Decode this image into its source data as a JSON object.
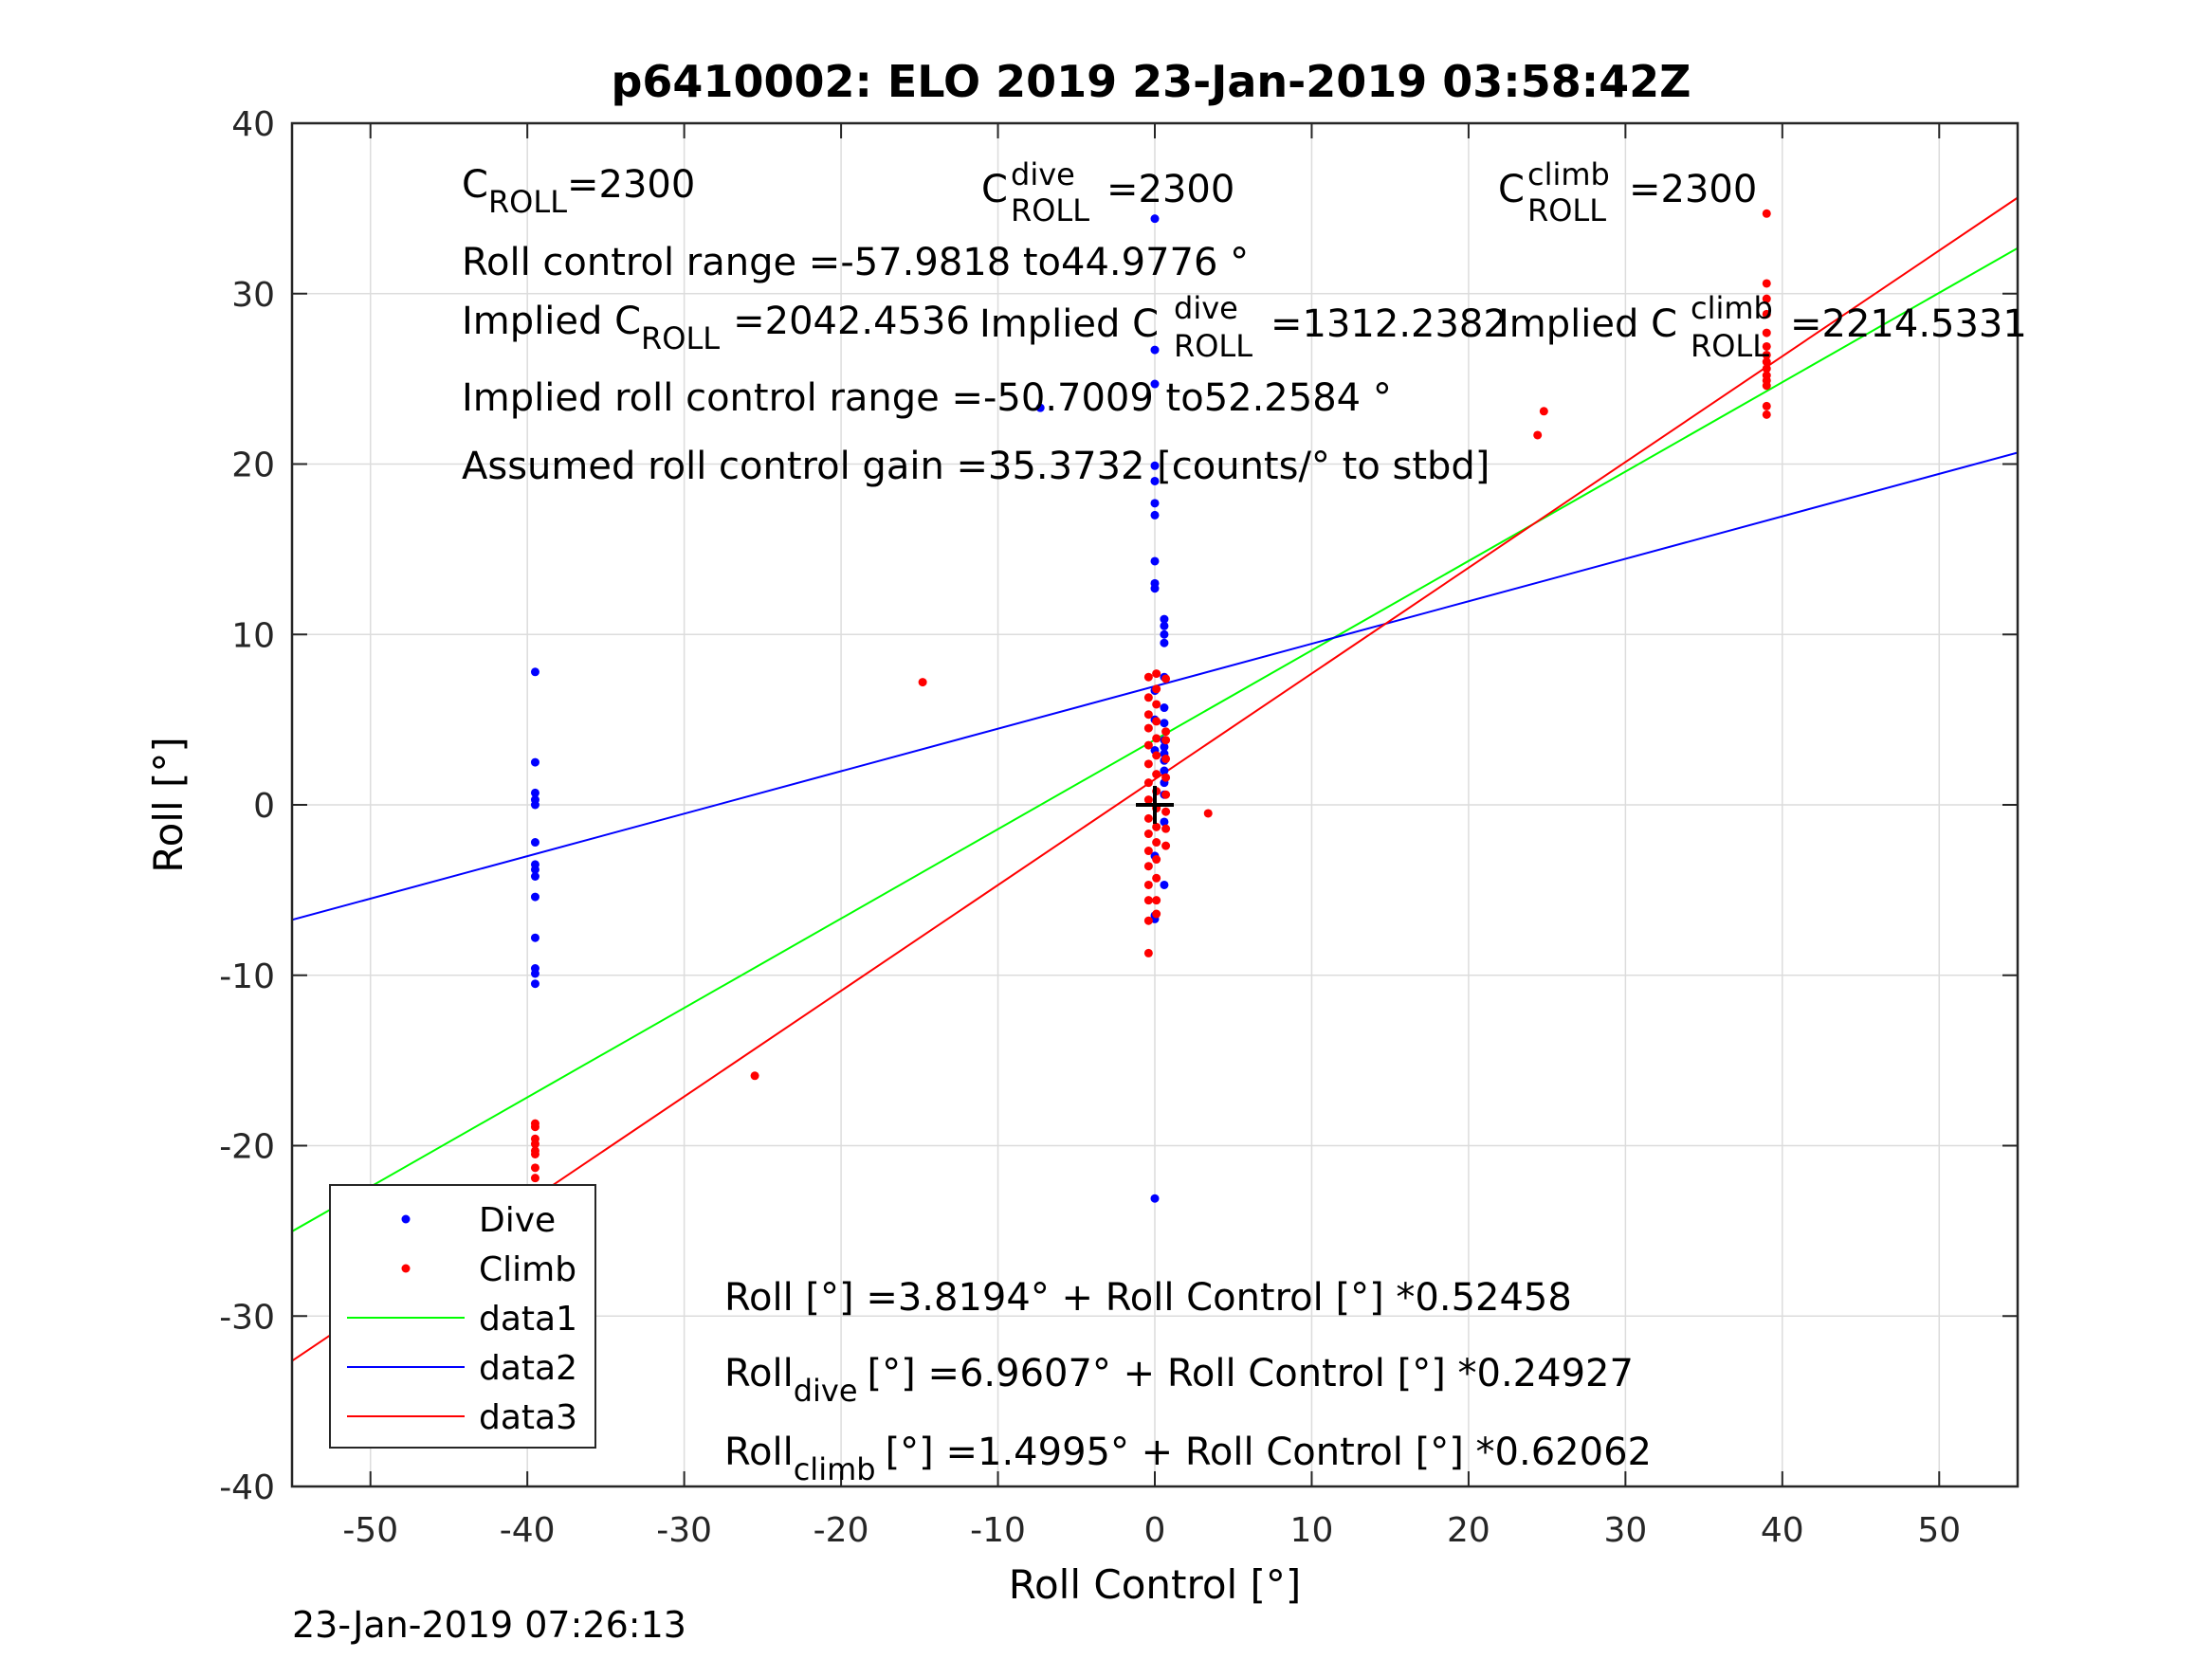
{
  "chart_data": {
    "type": "scatter",
    "title": "p6410002: ELO 2019 23-Jan-2019 03:58:42Z",
    "xlabel": "Roll Control [°]",
    "ylabel": "Roll [°]",
    "xlim": [
      -55,
      55
    ],
    "ylim": [
      -40,
      40
    ],
    "x_ticks": [
      -50,
      -40,
      -30,
      -20,
      -10,
      0,
      10,
      20,
      30,
      40,
      50
    ],
    "y_ticks": [
      -40,
      -30,
      -20,
      -10,
      0,
      10,
      20,
      30,
      40
    ],
    "x_tick_labels": [
      "-50",
      "-40",
      "-30",
      "-20",
      "-10",
      "0",
      "10",
      "20",
      "30",
      "40",
      "50"
    ],
    "y_tick_labels": [
      "-40",
      "-30",
      "-20",
      "-10",
      "0",
      "10",
      "20",
      "30",
      "40"
    ],
    "grid": true,
    "legend_position": "bottom-left",
    "timestamp": "23-Jan-2019 07:26:13",
    "colors": {
      "dive": "#0000ff",
      "climb": "#ff0000",
      "data1": "#00ff00",
      "data2": "#0000ff",
      "data3": "#ff0000",
      "origin": "#000000"
    },
    "origin_marker": {
      "x": 0,
      "y": 0
    },
    "scatter_series": [
      {
        "name": "Dive",
        "color": "#0000ff",
        "points": [
          [
            -39.5,
            7.8
          ],
          [
            -39.5,
            2.5
          ],
          [
            -39.5,
            0.7
          ],
          [
            -39.5,
            0.3
          ],
          [
            -39.5,
            0.0
          ],
          [
            -39.5,
            -2.2
          ],
          [
            -39.5,
            -3.5
          ],
          [
            -39.5,
            -3.8
          ],
          [
            -39.5,
            -4.2
          ],
          [
            -39.5,
            -5.4
          ],
          [
            -39.5,
            -7.8
          ],
          [
            -39.5,
            -9.6
          ],
          [
            -39.5,
            -9.9
          ],
          [
            -39.5,
            -10.5
          ],
          [
            0,
            34.4
          ],
          [
            0,
            26.7
          ],
          [
            0,
            24.7
          ],
          [
            0,
            19.9
          ],
          [
            0,
            19.0
          ],
          [
            0,
            17.7
          ],
          [
            0,
            17.0
          ],
          [
            0,
            14.3
          ],
          [
            0,
            13.0
          ],
          [
            0,
            12.7
          ],
          [
            0,
            6.7
          ],
          [
            0,
            5.0
          ],
          [
            0,
            3.2
          ],
          [
            0,
            -3.0
          ],
          [
            0,
            -6.5
          ],
          [
            0,
            -6.7
          ],
          [
            0,
            -23.1
          ],
          [
            0.6,
            10.9
          ],
          [
            0.6,
            10.5
          ],
          [
            0.6,
            10.0
          ],
          [
            0.6,
            9.5
          ],
          [
            0.6,
            7.5
          ],
          [
            0.6,
            5.7
          ],
          [
            0.6,
            4.8
          ],
          [
            0.6,
            3.8
          ],
          [
            0.6,
            3.4
          ],
          [
            0.6,
            3.0
          ],
          [
            0.6,
            2.6
          ],
          [
            0.6,
            2.0
          ],
          [
            0.6,
            1.3
          ],
          [
            0.6,
            0.6
          ],
          [
            0.6,
            -1.0
          ],
          [
            0.6,
            -4.7
          ],
          [
            -7.3,
            23.3
          ]
        ]
      },
      {
        "name": "Climb",
        "color": "#ff0000",
        "points": [
          [
            -39.5,
            -18.7
          ],
          [
            -39.5,
            -18.9
          ],
          [
            -39.5,
            -19.6
          ],
          [
            -39.5,
            -19.9
          ],
          [
            -39.5,
            -20.3
          ],
          [
            -39.5,
            -20.5
          ],
          [
            -39.5,
            -21.3
          ],
          [
            -39.5,
            -21.9
          ],
          [
            -39.5,
            -22.5
          ],
          [
            -25.5,
            -15.9
          ],
          [
            -14.8,
            7.2
          ],
          [
            3.4,
            -0.5
          ],
          [
            24.4,
            21.7
          ],
          [
            24.8,
            23.1
          ],
          [
            39,
            34.7
          ],
          [
            39,
            30.6
          ],
          [
            39,
            29.7
          ],
          [
            39,
            28.8
          ],
          [
            39,
            27.7
          ],
          [
            39,
            26.9
          ],
          [
            39,
            26.4
          ],
          [
            39,
            26.0
          ],
          [
            39,
            25.6
          ],
          [
            39,
            25.2
          ],
          [
            39,
            24.9
          ],
          [
            39,
            24.6
          ],
          [
            39,
            23.4
          ],
          [
            39,
            22.9
          ],
          [
            -0.4,
            7.5
          ],
          [
            -0.4,
            6.3
          ],
          [
            -0.4,
            5.3
          ],
          [
            -0.4,
            4.5
          ],
          [
            -0.4,
            3.5
          ],
          [
            -0.4,
            2.4
          ],
          [
            -0.4,
            1.3
          ],
          [
            -0.4,
            0.3
          ],
          [
            -0.4,
            -0.8
          ],
          [
            -0.4,
            -1.7
          ],
          [
            -0.4,
            -2.7
          ],
          [
            -0.4,
            -3.6
          ],
          [
            -0.4,
            -4.7
          ],
          [
            -0.4,
            -5.6
          ],
          [
            -0.4,
            -6.8
          ],
          [
            -0.4,
            -8.7
          ],
          [
            0.1,
            7.7
          ],
          [
            0.1,
            6.8
          ],
          [
            0.1,
            5.9
          ],
          [
            0.1,
            4.9
          ],
          [
            0.1,
            3.9
          ],
          [
            0.1,
            2.9
          ],
          [
            0.1,
            1.8
          ],
          [
            0.1,
            0.8
          ],
          [
            0.1,
            -0.2
          ],
          [
            0.1,
            -1.3
          ],
          [
            0.1,
            -2.2
          ],
          [
            0.1,
            -3.2
          ],
          [
            0.1,
            -4.3
          ],
          [
            0.1,
            -5.6
          ],
          [
            0.1,
            -6.4
          ],
          [
            0.7,
            7.4
          ],
          [
            0.7,
            4.3
          ],
          [
            0.7,
            3.8
          ],
          [
            0.7,
            2.7
          ],
          [
            0.7,
            1.6
          ],
          [
            0.7,
            0.6
          ],
          [
            0.7,
            -0.4
          ],
          [
            0.7,
            -1.4
          ],
          [
            0.7,
            -2.4
          ]
        ]
      }
    ],
    "line_series": [
      {
        "name": "data1",
        "color": "#00ff00",
        "intercept": 3.8194,
        "slope": 0.52458
      },
      {
        "name": "data2",
        "color": "#0000ff",
        "intercept": 6.9607,
        "slope": 0.24927
      },
      {
        "name": "data3",
        "color": "#ff0000",
        "intercept": 1.4995,
        "slope": 0.62062
      }
    ],
    "legend": [
      "Dive",
      "Climb",
      "data1",
      "data2",
      "data3"
    ],
    "annotations": {
      "c_roll": {
        "base": "C",
        "sub": "ROLL",
        "rest": "=2300"
      },
      "c_roll_dive": {
        "base": "C",
        "sup": "dive",
        "sub": "ROLL",
        "rest": "=2300"
      },
      "c_roll_climb": {
        "base": "C",
        "sup": "climb",
        "sub": "ROLL",
        "rest": "=2300"
      },
      "roll_control_range": "Roll control range =-57.9818 to44.9776 °",
      "implied_c_roll": {
        "base": "Implied C",
        "sub": "ROLL",
        "rest": "=2042.4536"
      },
      "implied_c_roll_dive": {
        "base": "Implied C",
        "sup": "dive",
        "sub": "ROLL",
        "rest": "=1312.2382"
      },
      "implied_c_roll_climb": {
        "base": "Implied C",
        "sup": "climb",
        "sub": "ROLL",
        "rest": "=2214.5331"
      },
      "implied_roll_control_range": "Implied roll control range =-50.7009 to52.2584 °",
      "assumed_gain": "Assumed roll control gain =35.3732 [counts/° to stbd]",
      "fit_all": "Roll [°] =3.8194° + Roll Control [°] *0.52458",
      "fit_dive": {
        "base": "Roll",
        "sub": "dive",
        "rest": "[°] =6.9607° + Roll Control [°] *0.24927"
      },
      "fit_climb": {
        "base": "Roll",
        "sub": "climb",
        "rest": "[°] =1.4995° + Roll Control [°] *0.62062"
      }
    }
  }
}
